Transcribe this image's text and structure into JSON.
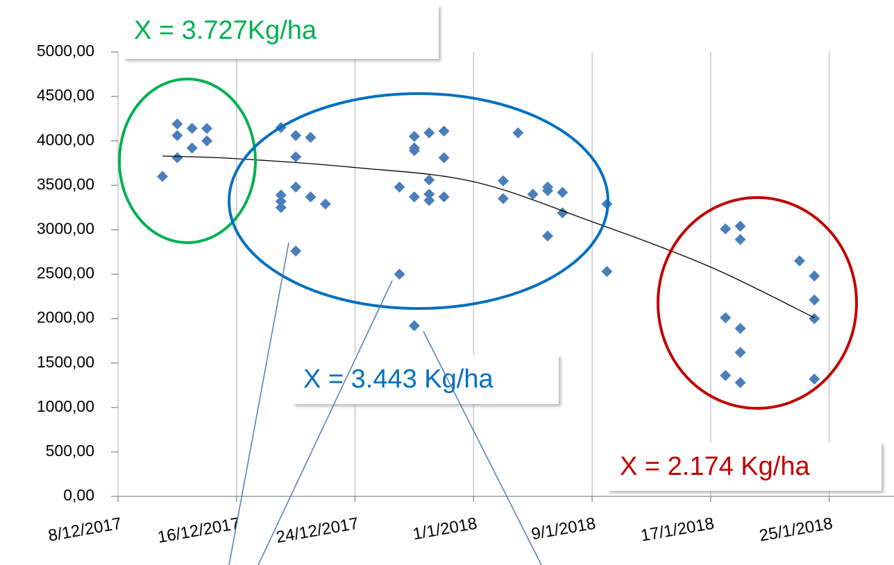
{
  "chart_data": {
    "type": "scatter",
    "x": [
      "2017-12-11",
      "2017-12-12",
      "2017-12-12",
      "2017-12-12",
      "2017-12-13",
      "2017-12-13",
      "2017-12-14",
      "2017-12-14",
      "2017-12-19",
      "2017-12-19",
      "2017-12-19",
      "2017-12-19",
      "2017-12-20",
      "2017-12-20",
      "2017-12-20",
      "2017-12-20",
      "2017-12-21",
      "2017-12-21",
      "2017-12-22",
      "2017-12-27",
      "2017-12-27",
      "2017-12-28",
      "2017-12-28",
      "2017-12-28",
      "2017-12-28",
      "2017-12-28",
      "2017-12-29",
      "2017-12-29",
      "2017-12-29",
      "2017-12-29",
      "2017-12-30",
      "2017-12-30",
      "2017-12-30",
      "2018-01-03",
      "2018-01-03",
      "2018-01-04",
      "2018-01-05",
      "2018-01-06",
      "2018-01-06",
      "2018-01-06",
      "2018-01-07",
      "2018-01-07",
      "2018-01-10",
      "2018-01-10",
      "2018-01-18",
      "2018-01-18",
      "2018-01-18",
      "2018-01-19",
      "2018-01-19",
      "2018-01-19",
      "2018-01-19",
      "2018-01-19",
      "2018-01-23",
      "2018-01-24",
      "2018-01-24",
      "2018-01-24",
      "2018-01-24"
    ],
    "series": [
      {
        "color": "#4a7ebb",
        "values": [
          3600,
          4190,
          4060,
          3810,
          4140,
          3920,
          4140,
          4000,
          4150,
          3390,
          3320,
          3250,
          4060,
          3820,
          3480,
          2760,
          4040,
          3370,
          3290,
          3480,
          2500,
          4050,
          3920,
          3890,
          3370,
          1920,
          4090,
          3560,
          3400,
          3330,
          4110,
          3810,
          3370,
          3550,
          3350,
          4090,
          3400,
          3480,
          3440,
          2930,
          3420,
          3190,
          3290,
          2530,
          3010,
          2010,
          1360,
          3040,
          2890,
          1890,
          1620,
          1280,
          2650,
          2480,
          2210,
          2000,
          1320
        ]
      }
    ],
    "trend": {
      "color": "#000000",
      "x": [
        "2017-12-11",
        "2017-12-16",
        "2017-12-24",
        "2018-01-01",
        "2018-01-09",
        "2018-01-17",
        "2018-01-24"
      ],
      "values": [
        3830,
        3800,
        3700,
        3540,
        3090,
        2580,
        2010
      ]
    },
    "xlim": [
      "2017-12-08",
      "2018-01-29"
    ],
    "xticks": [
      {
        "value": "2017-12-08",
        "label": "8/12/2017"
      },
      {
        "value": "2017-12-16",
        "label": "16/12/2017"
      },
      {
        "value": "2017-12-24",
        "label": "24/12/2017"
      },
      {
        "value": "2018-01-01",
        "label": "1/1/2018"
      },
      {
        "value": "2018-01-09",
        "label": "9/1/2018"
      },
      {
        "value": "2018-01-17",
        "label": "17/1/2018"
      },
      {
        "value": "2018-01-25",
        "label": "25/1/2018"
      }
    ],
    "ylim": [
      0,
      5000
    ],
    "yticks": [
      {
        "value": 0,
        "label": "0,00"
      },
      {
        "value": 500,
        "label": "500,00"
      },
      {
        "value": 1000,
        "label": "1000,00"
      },
      {
        "value": 1500,
        "label": "1500,00"
      },
      {
        "value": 2000,
        "label": "2000,00"
      },
      {
        "value": 2500,
        "label": "2500,00"
      },
      {
        "value": 3000,
        "label": "3000,00"
      },
      {
        "value": 3500,
        "label": "3500,00"
      },
      {
        "value": 4000,
        "label": "4000,00"
      },
      {
        "value": 4500,
        "label": "4500,00"
      },
      {
        "value": 5000,
        "label": "5000,00"
      }
    ],
    "grid": true,
    "annotations": [
      {
        "text": "X = 3.727Kg/ha",
        "color": "#00b050"
      },
      {
        "text": "X = 3.443 Kg/ha",
        "color": "#0070c0"
      },
      {
        "text": "X = 2.174 Kg/ha",
        "color": "#c00000"
      }
    ]
  }
}
